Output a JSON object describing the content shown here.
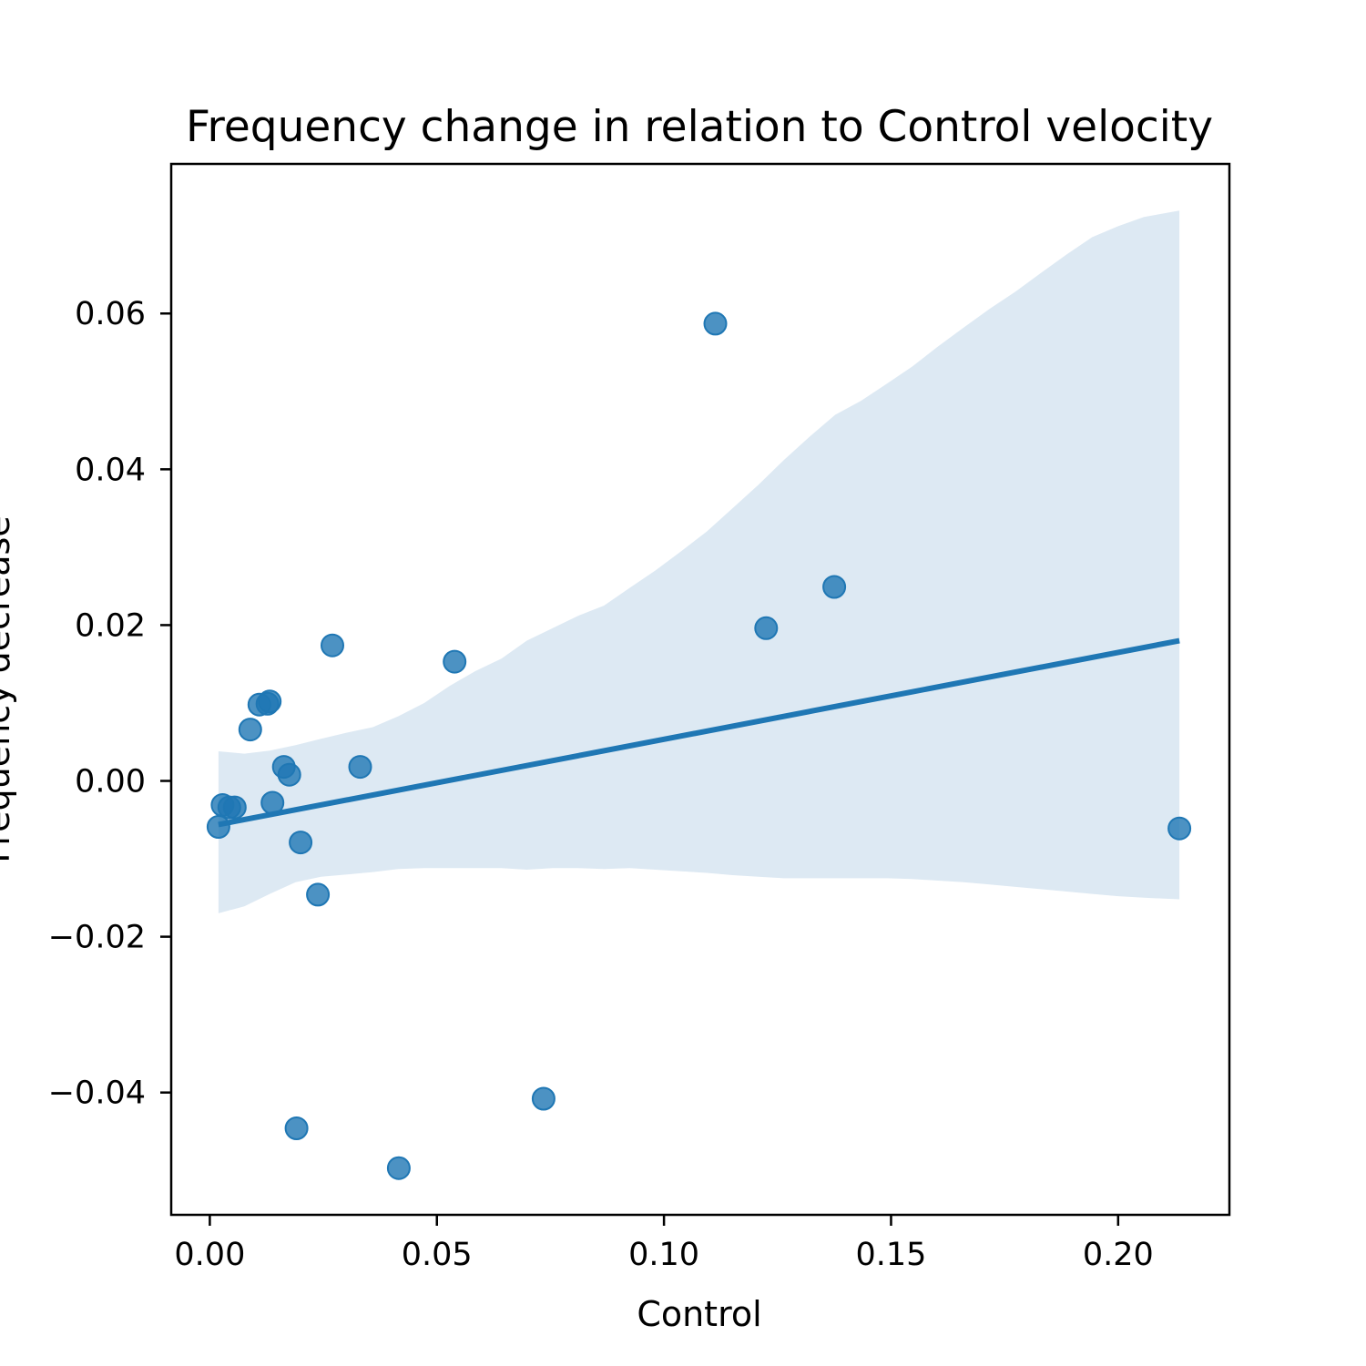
{
  "chart_data": {
    "type": "scatter",
    "title": "Frequency change in relation to Control velocity",
    "xlabel": "Control",
    "ylabel": "Frequency decrease",
    "xlim": [
      -0.0085,
      0.2245
    ],
    "ylim": [
      -0.0557,
      0.0792
    ],
    "xticks": [
      0.0,
      0.05,
      0.1,
      0.15,
      0.2
    ],
    "xtick_labels": [
      "0.00",
      "0.05",
      "0.10",
      "0.15",
      "0.20"
    ],
    "yticks": [
      -0.04,
      -0.02,
      0.0,
      0.02,
      0.04,
      0.06
    ],
    "ytick_labels": [
      "−0.04",
      "−0.02",
      "0.00",
      "0.02",
      "0.04",
      "0.06"
    ],
    "grid": false,
    "legend": "none",
    "colors": {
      "points": "#1f77b4",
      "line": "#1f77b4",
      "band": "#dde9f3"
    },
    "series": [
      {
        "type": "scatter",
        "x": [
          0.0019,
          0.0028,
          0.0043,
          0.0055,
          0.0089,
          0.0109,
          0.0127,
          0.0132,
          0.0138,
          0.0163,
          0.0175,
          0.0191,
          0.02,
          0.0238,
          0.027,
          0.0331,
          0.0416,
          0.0539,
          0.0735,
          0.1113,
          0.1225,
          0.1375,
          0.2135
        ],
        "y": [
          -0.0059,
          -0.0031,
          -0.0034,
          -0.0034,
          0.0066,
          0.0098,
          0.0099,
          0.0102,
          -0.0028,
          0.0018,
          0.0008,
          -0.0446,
          -0.0079,
          -0.0146,
          0.0174,
          0.0018,
          -0.0497,
          0.0153,
          -0.0408,
          0.0587,
          0.0196,
          0.0249,
          -0.0061
        ]
      },
      {
        "type": "regression",
        "x": [
          0.0019,
          0.2135
        ],
        "y": [
          -0.0056,
          0.018
        ]
      },
      {
        "type": "confidence_band",
        "x": [
          0.0019,
          0.0076,
          0.0132,
          0.0189,
          0.0245,
          0.0302,
          0.0359,
          0.0415,
          0.0472,
          0.0528,
          0.0585,
          0.0642,
          0.0698,
          0.0755,
          0.0811,
          0.0868,
          0.0925,
          0.0981,
          0.1038,
          0.1094,
          0.1151,
          0.1208,
          0.1264,
          0.1321,
          0.1377,
          0.1434,
          0.1491,
          0.1547,
          0.1604,
          0.166,
          0.1717,
          0.1774,
          0.183,
          0.1887,
          0.1943,
          0.2,
          0.2057,
          0.2135
        ],
        "upper": [
          0.0038,
          0.0035,
          0.0039,
          0.0046,
          0.0054,
          0.0062,
          0.0069,
          0.0083,
          0.01,
          0.0122,
          0.0141,
          0.0157,
          0.018,
          0.0196,
          0.0212,
          0.0225,
          0.0248,
          0.027,
          0.0295,
          0.032,
          0.035,
          0.038,
          0.0412,
          0.0442,
          0.047,
          0.0488,
          0.051,
          0.0532,
          0.0558,
          0.0582,
          0.0606,
          0.0628,
          0.0652,
          0.0676,
          0.0698,
          0.0712,
          0.0724,
          0.0732
        ],
        "lower": [
          -0.017,
          -0.0161,
          -0.0145,
          -0.013,
          -0.0123,
          -0.012,
          -0.0117,
          -0.0113,
          -0.0112,
          -0.0112,
          -0.0112,
          -0.0112,
          -0.0114,
          -0.0112,
          -0.0112,
          -0.0113,
          -0.0112,
          -0.0114,
          -0.0116,
          -0.0118,
          -0.0121,
          -0.0123,
          -0.0125,
          -0.0125,
          -0.0125,
          -0.0125,
          -0.0125,
          -0.0126,
          -0.0128,
          -0.013,
          -0.0133,
          -0.0136,
          -0.0139,
          -0.0142,
          -0.0145,
          -0.0148,
          -0.015,
          -0.0152
        ]
      }
    ]
  }
}
